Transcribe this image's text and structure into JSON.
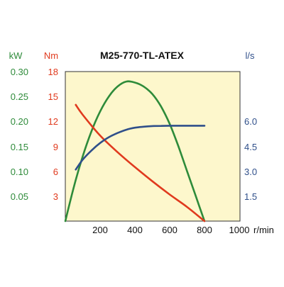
{
  "chart_data": {
    "type": "line",
    "title": "M25-770-TL-ATEX",
    "x_unit": "r/min",
    "x_range": [
      0,
      1000
    ],
    "x_ticks": [
      200,
      400,
      600,
      800,
      1000
    ],
    "plot_background": "#fdf7cc",
    "grid": false,
    "axes": {
      "power": {
        "unit": "kW",
        "range": [
          0,
          0.3
        ],
        "ticks": [
          "0.30",
          "0.25",
          "0.20",
          "0.15",
          "0.10",
          "0.05"
        ],
        "color": "#2e8b3a"
      },
      "torque": {
        "unit": "Nm",
        "range": [
          0,
          18
        ],
        "ticks": [
          "18",
          "15",
          "12",
          "9",
          "6",
          "3"
        ],
        "color": "#e03a1e"
      },
      "flow": {
        "unit": "l/s",
        "range": [
          0,
          9
        ],
        "ticks": [
          "6.0",
          "4.5",
          "3.0",
          "1.5"
        ],
        "color": "#2f4f8a"
      }
    },
    "series": [
      {
        "axis": "power",
        "color": "#2e8b3a",
        "x": [
          0,
          50,
          100,
          150,
          200,
          250,
          300,
          350,
          400,
          450,
          500,
          550,
          600,
          650,
          700,
          750,
          800
        ],
        "y": [
          0.0,
          0.07,
          0.13,
          0.18,
          0.22,
          0.25,
          0.27,
          0.28,
          0.278,
          0.27,
          0.255,
          0.23,
          0.195,
          0.15,
          0.1,
          0.05,
          0.0
        ]
      },
      {
        "axis": "torque",
        "color": "#e03a1e",
        "x": [
          60,
          100,
          200,
          300,
          400,
          500,
          600,
          700,
          800
        ],
        "y": [
          14.0,
          12.8,
          10.3,
          8.3,
          6.5,
          4.8,
          3.2,
          1.7,
          0.0
        ]
      },
      {
        "axis": "flow",
        "color": "#2f4f8a",
        "x": [
          60,
          100,
          150,
          200,
          250,
          300,
          350,
          400,
          450,
          500,
          550,
          600,
          650,
          700,
          750,
          800
        ],
        "y": [
          3.1,
          3.7,
          4.25,
          4.7,
          5.05,
          5.3,
          5.5,
          5.62,
          5.68,
          5.72,
          5.73,
          5.74,
          5.74,
          5.74,
          5.74,
          5.74
        ]
      }
    ]
  }
}
